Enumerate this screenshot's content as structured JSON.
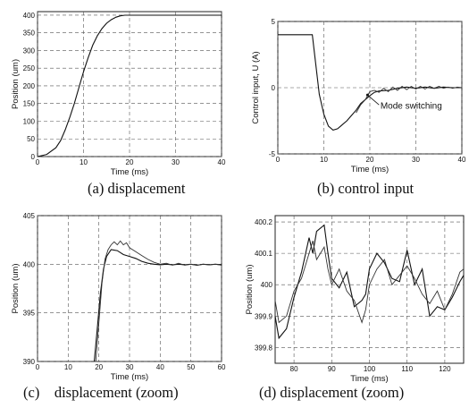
{
  "figure": {
    "panels": [
      {
        "caption": "(a) displacement",
        "xlabel": "Time (ms)",
        "ylabel": "Position (um)"
      },
      {
        "caption": "(b) control input",
        "xlabel": "Time (ms)",
        "ylabel": "Control input, U (A)",
        "annotation": "Mode switching"
      },
      {
        "caption": "(c)    displacement (zoom)",
        "xlabel": "Time (ms)",
        "ylabel": "Position (um)"
      },
      {
        "caption": "(d) displacement (zoom)",
        "xlabel": "Time (ms)",
        "ylabel": "Position (um)"
      }
    ]
  },
  "chart_data": [
    {
      "type": "line",
      "title": "",
      "xlabel": "Time (ms)",
      "ylabel": "Position (um)",
      "xlim": [
        0,
        40
      ],
      "ylim": [
        0,
        410
      ],
      "xticks": [
        0,
        10,
        20,
        30,
        40
      ],
      "yticks": [
        0,
        50,
        100,
        150,
        200,
        250,
        300,
        350,
        400
      ],
      "grid": "dashed",
      "series": [
        {
          "x": [
            0,
            2,
            4,
            5,
            6,
            7,
            8,
            9,
            10,
            11,
            12,
            13,
            14,
            15,
            16,
            17,
            18,
            19,
            20,
            22,
            25,
            30,
            40
          ],
          "values": [
            0,
            6,
            25,
            45,
            75,
            110,
            150,
            195,
            240,
            280,
            315,
            342,
            362,
            377,
            387,
            394,
            398,
            400,
            400,
            400,
            400,
            400,
            400
          ]
        }
      ]
    },
    {
      "type": "line",
      "title": "",
      "xlabel": "Time (ms)",
      "ylabel": "Control input, U (A)",
      "xlim": [
        0,
        40
      ],
      "ylim": [
        -5,
        5
      ],
      "xticks": [
        0,
        10,
        20,
        30,
        40
      ],
      "yticks": [
        -5,
        0,
        5
      ],
      "grid": "dashed",
      "annotation": "Mode switching",
      "series": [
        {
          "x": [
            0,
            7.5,
            8,
            9,
            10,
            11,
            12,
            13,
            14,
            15,
            16,
            17,
            18,
            19,
            20,
            21,
            22,
            24,
            26,
            28,
            30,
            32,
            34,
            36,
            38,
            40
          ],
          "values": [
            4,
            4,
            2.5,
            -0.5,
            -2,
            -2.9,
            -3.2,
            -3.1,
            -2.8,
            -2.5,
            -2.1,
            -1.7,
            -1.2,
            -0.9,
            -0.6,
            -0.35,
            -0.25,
            -0.2,
            -0.05,
            0.05,
            -0.05,
            0.05,
            -0.05,
            0.05,
            0.0,
            0.0
          ]
        },
        {
          "x": [
            17,
            18,
            19,
            20,
            21,
            22,
            23,
            24,
            25,
            26,
            27,
            28,
            29,
            30,
            31,
            32,
            33,
            34,
            35,
            36,
            37,
            38,
            39,
            40
          ],
          "values": [
            -1.9,
            -1.3,
            -0.9,
            -0.3,
            -0.2,
            -0.35,
            -0.05,
            -0.3,
            0.05,
            -0.2,
            0.1,
            -0.15,
            0.1,
            -0.1,
            0.1,
            -0.1,
            0.1,
            -0.05,
            0.1,
            -0.05,
            0.05,
            -0.05,
            0.05,
            0.0
          ]
        }
      ]
    },
    {
      "type": "line",
      "title": "",
      "xlabel": "Time (ms)",
      "ylabel": "Position (um)",
      "xlim": [
        0,
        60
      ],
      "ylim": [
        390,
        405
      ],
      "xticks": [
        0,
        10,
        20,
        30,
        40,
        50,
        60
      ],
      "yticks": [
        390,
        395,
        400,
        405
      ],
      "grid": "dashed",
      "series": [
        {
          "x": [
            18.5,
            19.5,
            20.5,
            21.5,
            22.5,
            24,
            26,
            28,
            30,
            32,
            34,
            36,
            38,
            40,
            42,
            44,
            46,
            48,
            50,
            52,
            54,
            56,
            58,
            60
          ],
          "values": [
            390,
            393.5,
            397,
            399.5,
            400.8,
            401.5,
            401.4,
            401.0,
            400.8,
            400.6,
            400.3,
            400.1,
            400.0,
            399.95,
            400.0,
            399.95,
            400.0,
            399.95,
            400.0,
            399.9,
            400.0,
            399.95,
            400.0,
            399.95
          ]
        },
        {
          "x": [
            19,
            20,
            21,
            22,
            23,
            24,
            25,
            26,
            27,
            28,
            29,
            30,
            32,
            34,
            36,
            38,
            40,
            42,
            44,
            46,
            48,
            50,
            52,
            54,
            56,
            58,
            60
          ],
          "values": [
            390,
            394,
            398,
            400.5,
            401.5,
            402.0,
            402.3,
            402.0,
            402.4,
            402.0,
            402.2,
            401.7,
            401.3,
            400.9,
            400.5,
            400.2,
            400.0,
            400.1,
            399.9,
            400.1,
            399.9,
            400.0,
            399.9,
            400.0,
            399.95,
            400.0,
            399.9
          ]
        }
      ]
    },
    {
      "type": "line",
      "title": "",
      "xlabel": "Time (ms)",
      "ylabel": "Position (um)",
      "xlim": [
        75,
        125
      ],
      "ylim": [
        399.75,
        400.22
      ],
      "xticks": [
        80,
        90,
        100,
        110,
        120
      ],
      "yticks": [
        399.8,
        399.9,
        400,
        400.1,
        400.2
      ],
      "grid": "dashed",
      "series": [
        {
          "x": [
            75,
            76,
            78,
            80,
            82,
            84,
            85,
            86,
            88,
            89,
            90,
            92,
            94,
            96,
            98,
            99,
            100,
            102,
            104,
            106,
            108,
            110,
            112,
            114,
            116,
            118,
            120,
            122,
            124,
            125
          ],
          "values": [
            399.9,
            399.83,
            399.86,
            399.96,
            400.04,
            400.15,
            400.1,
            400.17,
            400.19,
            400.1,
            400.02,
            399.99,
            400.04,
            399.93,
            399.95,
            399.97,
            400.05,
            400.1,
            400.07,
            400.02,
            400.01,
            400.11,
            400.0,
            400.05,
            399.9,
            399.93,
            399.92,
            399.96,
            400.01,
            400.03
          ]
        },
        {
          "x": [
            75,
            76,
            78,
            80,
            82,
            84,
            85,
            86,
            88,
            89,
            90,
            92,
            94,
            96,
            98,
            99,
            100,
            102,
            104,
            106,
            108,
            110,
            112,
            114,
            116,
            118,
            120,
            122,
            124,
            125
          ],
          "values": [
            399.95,
            399.88,
            399.9,
            399.98,
            400.02,
            400.1,
            400.14,
            400.08,
            400.12,
            400.05,
            400.0,
            400.05,
            399.98,
            399.95,
            399.88,
            399.92,
            400.0,
            400.05,
            400.08,
            400.0,
            400.03,
            400.06,
            400.02,
            399.97,
            399.94,
            399.98,
            399.92,
            399.97,
            400.04,
            400.05
          ]
        }
      ]
    }
  ]
}
